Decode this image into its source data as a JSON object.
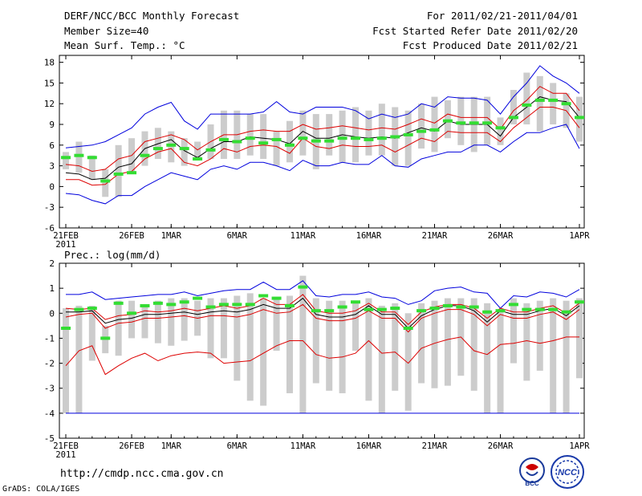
{
  "header": {
    "title": "DERF/NCC/BCC Monthly Forecast",
    "member_size": "Member Size=40",
    "variable": "Mean Surf. Temp.: °C",
    "period": "For 2011/02/21-2011/04/01",
    "started": "Fcst Started Refer Date 2011/02/20",
    "produced": "Fcst Produced Date 2011/02/21"
  },
  "footer": {
    "url": "http://cmdp.ncc.cma.gov.cn",
    "credit": "GrADS: COLA/IGES",
    "logo_left_text": "BCC",
    "logo_right_text": "NCC"
  },
  "colors": {
    "blue": "#0000dd",
    "red": "#dd0000",
    "black": "#000000",
    "green": "#33dd33",
    "gray": "#cccccc"
  },
  "chart_data": [
    {
      "type": "line",
      "name": "temperature",
      "title": "Mean Surf. Temp.: °C",
      "ylim": [
        -6,
        19
      ],
      "yticks": [
        -6,
        -3,
        0,
        3,
        6,
        9,
        12,
        15,
        18
      ],
      "ytick_labels": [
        "-6",
        "-3",
        "0",
        "3",
        "6",
        "9",
        "12",
        "15",
        "18"
      ],
      "xtick_labels": [
        {
          "day": 0,
          "label": "21FEB",
          "sub": "2011"
        },
        {
          "day": 5,
          "label": "26FEB",
          "sub": ""
        },
        {
          "day": 8,
          "label": "1MAR",
          "sub": ""
        },
        {
          "day": 13,
          "label": "6MAR",
          "sub": ""
        },
        {
          "day": 18,
          "label": "11MAR",
          "sub": ""
        },
        {
          "day": 23,
          "label": "16MAR",
          "sub": ""
        },
        {
          "day": 28,
          "label": "21MAR",
          "sub": ""
        },
        {
          "day": 33,
          "label": "26MAR",
          "sub": ""
        },
        {
          "day": 39,
          "label": "1APR",
          "sub": ""
        }
      ],
      "series": [
        {
          "name": "max",
          "color": "blue",
          "values": [
            5.6,
            5.8,
            6.0,
            6.5,
            7.5,
            8.5,
            10.5,
            11.5,
            12.2,
            9.5,
            8.3,
            10.5,
            10.5,
            10.5,
            10.5,
            10.8,
            12.3,
            10.8,
            10.5,
            11.5,
            11.5,
            11.5,
            11.0,
            9.8,
            10.5,
            10.0,
            10.5,
            12.0,
            11.5,
            13.0,
            12.8,
            12.8,
            12.5,
            10.5,
            13.0,
            15.0,
            17.5,
            16.0,
            15.0,
            13.5
          ]
        },
        {
          "name": "upper",
          "color": "red",
          "values": [
            3.2,
            3.0,
            2.2,
            2.5,
            4.0,
            4.5,
            6.5,
            7.0,
            7.5,
            6.8,
            5.3,
            6.5,
            7.5,
            7.5,
            8.0,
            8.2,
            8.0,
            8.0,
            9.0,
            8.3,
            8.5,
            8.8,
            8.5,
            8.2,
            8.5,
            8.3,
            9.0,
            9.8,
            9.2,
            10.5,
            10.0,
            10.0,
            10.0,
            8.3,
            11.0,
            12.5,
            14.5,
            13.5,
            13.5,
            11.0
          ]
        },
        {
          "name": "mean",
          "color": "black",
          "values": [
            2.0,
            1.8,
            1.0,
            1.2,
            2.8,
            3.3,
            5.5,
            6.2,
            6.8,
            5.2,
            4.2,
            5.5,
            6.5,
            6.5,
            7.2,
            7.0,
            6.8,
            6.2,
            8.0,
            7.0,
            7.0,
            7.5,
            7.2,
            7.0,
            7.2,
            7.0,
            7.8,
            8.5,
            8.0,
            9.5,
            9.0,
            9.0,
            9.0,
            7.3,
            10.0,
            11.5,
            13.0,
            12.5,
            12.3,
            10.0
          ]
        },
        {
          "name": "lower",
          "color": "red",
          "values": [
            1.0,
            1.0,
            0.2,
            0.3,
            1.8,
            2.2,
            4.0,
            5.0,
            5.5,
            3.5,
            3.0,
            4.0,
            5.5,
            5.0,
            5.8,
            6.0,
            5.8,
            4.8,
            7.0,
            5.8,
            5.5,
            6.0,
            5.8,
            5.8,
            6.0,
            5.0,
            6.0,
            7.0,
            6.5,
            8.0,
            7.8,
            7.8,
            7.8,
            6.5,
            8.5,
            10.0,
            11.5,
            11.5,
            11.0,
            8.5
          ]
        },
        {
          "name": "min",
          "color": "blue",
          "values": [
            -1.0,
            -1.2,
            -2.0,
            -2.5,
            -1.3,
            -1.3,
            0.0,
            1.0,
            2.0,
            1.5,
            1.0,
            2.5,
            3.0,
            2.5,
            3.5,
            3.5,
            3.0,
            2.3,
            3.8,
            3.0,
            3.0,
            3.5,
            3.2,
            3.2,
            4.5,
            3.0,
            2.8,
            4.0,
            4.5,
            5.0,
            5.0,
            6.0,
            6.0,
            5.0,
            6.5,
            7.8,
            7.8,
            8.5,
            9.0,
            5.5
          ]
        }
      ],
      "bars": {
        "name": "spread",
        "color": "gray",
        "low": [
          2.5,
          2.0,
          1.0,
          -1.5,
          -1.5,
          2.0,
          3.0,
          4.0,
          3.5,
          3.0,
          4.0,
          4.0,
          4.0,
          4.0,
          4.5,
          4.0,
          3.0,
          3.5,
          4.5,
          2.5,
          4.5,
          3.5,
          3.5,
          4.5,
          4.5,
          3.0,
          3.0,
          5.5,
          5.0,
          7.0,
          6.0,
          5.0,
          6.0,
          6.0,
          9.0,
          9.0,
          8.0,
          9.0,
          8.5,
          6.5
        ],
        "high": [
          5.0,
          6.5,
          4.5,
          2.5,
          6.0,
          7.0,
          8.0,
          8.5,
          8.0,
          7.0,
          6.5,
          9.0,
          11.0,
          11.0,
          10.5,
          10.5,
          8.0,
          9.5,
          11.0,
          10.5,
          10.5,
          11.0,
          11.5,
          11.0,
          12.0,
          11.5,
          11.0,
          12.0,
          13.0,
          12.5,
          13.0,
          13.0,
          13.0,
          10.0,
          14.0,
          16.5,
          16.0,
          15.0,
          13.5,
          13.0
        ]
      },
      "markers": {
        "name": "observed",
        "color": "green",
        "values": [
          4.2,
          4.5,
          4.2,
          0.8,
          1.8,
          2.0,
          4.5,
          5.5,
          6.0,
          5.5,
          4.0,
          5.3,
          6.8,
          6.5,
          7.0,
          6.3,
          6.8,
          6.0,
          7.0,
          6.6,
          6.6,
          7.0,
          7.0,
          6.8,
          7.0,
          7.2,
          7.5,
          8.0,
          8.2,
          9.5,
          9.2,
          9.2,
          9.2,
          8.5,
          10.0,
          11.8,
          12.5,
          12.5,
          12.0,
          10.0
        ]
      }
    },
    {
      "type": "line",
      "name": "precipitation",
      "title": "Prec.: log(mm/d)",
      "ylim": [
        -5,
        2
      ],
      "yticks": [
        -5,
        -4,
        -3,
        -2,
        -1,
        0,
        1,
        2
      ],
      "ytick_labels": [
        "-5",
        "-4",
        "-3",
        "-2",
        "-1",
        "0",
        "1",
        "2"
      ],
      "xtick_labels": [
        {
          "day": 0,
          "label": "21FEB",
          "sub": "2011"
        },
        {
          "day": 5,
          "label": "26FEB",
          "sub": ""
        },
        {
          "day": 8,
          "label": "1MAR",
          "sub": ""
        },
        {
          "day": 13,
          "label": "6MAR",
          "sub": ""
        },
        {
          "day": 18,
          "label": "11MAR",
          "sub": ""
        },
        {
          "day": 23,
          "label": "16MAR",
          "sub": ""
        },
        {
          "day": 28,
          "label": "21MAR",
          "sub": ""
        },
        {
          "day": 33,
          "label": "26MAR",
          "sub": ""
        },
        {
          "day": 39,
          "label": "1APR",
          "sub": ""
        }
      ],
      "series": [
        {
          "name": "max",
          "color": "blue",
          "values": [
            0.75,
            0.75,
            0.85,
            0.55,
            0.6,
            0.65,
            0.7,
            0.75,
            0.75,
            0.85,
            0.7,
            0.8,
            0.9,
            0.95,
            0.95,
            1.25,
            0.95,
            0.95,
            1.3,
            0.7,
            0.65,
            0.75,
            0.75,
            0.85,
            0.65,
            0.6,
            0.35,
            0.5,
            0.9,
            1.0,
            1.05,
            0.85,
            0.8,
            0.2,
            0.7,
            0.65,
            0.85,
            0.8,
            0.65,
            0.95
          ]
        },
        {
          "name": "upper",
          "color": "red",
          "values": [
            0.2,
            0.15,
            0.2,
            -0.25,
            -0.1,
            -0.05,
            0.1,
            0.05,
            0.1,
            0.2,
            0.1,
            0.2,
            0.3,
            0.2,
            0.3,
            0.6,
            0.35,
            0.35,
            0.75,
            0.1,
            0.0,
            0.0,
            0.1,
            0.4,
            0.05,
            0.05,
            -0.45,
            0.05,
            0.25,
            0.35,
            0.35,
            0.2,
            -0.2,
            0.2,
            0.05,
            0.05,
            0.2,
            0.3,
            0.0,
            0.4
          ]
        },
        {
          "name": "mean",
          "color": "black",
          "values": [
            0.05,
            0.05,
            0.1,
            -0.4,
            -0.25,
            -0.2,
            -0.05,
            -0.05,
            0.0,
            0.05,
            -0.05,
            0.05,
            0.1,
            0.05,
            0.15,
            0.35,
            0.2,
            0.2,
            0.6,
            -0.05,
            -0.15,
            -0.15,
            -0.05,
            0.3,
            -0.05,
            -0.05,
            -0.6,
            -0.1,
            0.15,
            0.3,
            0.3,
            0.1,
            -0.35,
            0.1,
            -0.05,
            -0.05,
            0.1,
            0.2,
            -0.1,
            0.3
          ]
        },
        {
          "name": "lower",
          "color": "red",
          "values": [
            -0.15,
            -0.05,
            0.0,
            -0.6,
            -0.4,
            -0.35,
            -0.2,
            -0.2,
            -0.15,
            -0.1,
            -0.2,
            -0.1,
            -0.1,
            -0.15,
            -0.05,
            0.15,
            0.0,
            0.05,
            0.35,
            -0.2,
            -0.3,
            -0.3,
            -0.2,
            0.1,
            -0.2,
            -0.2,
            -0.75,
            -0.2,
            0.0,
            0.15,
            0.15,
            -0.05,
            -0.5,
            -0.05,
            -0.2,
            -0.2,
            -0.05,
            0.05,
            -0.25,
            0.15
          ]
        },
        {
          "name": "min",
          "color": "red",
          "values": [
            -2.1,
            -1.5,
            -1.3,
            -2.45,
            -2.1,
            -1.8,
            -1.6,
            -1.9,
            -1.7,
            -1.6,
            -1.55,
            -1.6,
            -2.0,
            -1.95,
            -1.9,
            -1.6,
            -1.3,
            -1.1,
            -1.1,
            -1.65,
            -1.8,
            -1.75,
            -1.6,
            -1.1,
            -1.6,
            -1.55,
            -2.0,
            -1.4,
            -1.2,
            -1.05,
            -0.95,
            -1.5,
            -1.65,
            -1.25,
            -1.2,
            -1.1,
            -1.2,
            -1.1,
            -0.95,
            -0.95
          ]
        }
      ],
      "baseline": {
        "name": "floor",
        "color": "blue",
        "value": -4
      },
      "bars": {
        "name": "spread",
        "color": "gray",
        "low": [
          -4,
          -4,
          -1.9,
          -1.6,
          -1.7,
          -1.0,
          -1.0,
          -1.2,
          -1.3,
          -1.1,
          -0.9,
          -1.8,
          -1.8,
          -2.7,
          -3.5,
          -3.7,
          -1.5,
          -3.2,
          -4,
          -2.8,
          -3.1,
          -3.2,
          -1.5,
          -3.5,
          -4,
          -3.1,
          -3.9,
          -2.8,
          -3.0,
          -2.9,
          -2.5,
          -3.1,
          -4,
          -4,
          -2.0,
          -2.7,
          -2.3,
          -4,
          -4,
          -2.6
        ],
        "high": [
          0.2,
          0.3,
          0.3,
          -0.5,
          0.5,
          0.5,
          0.3,
          0.5,
          0.6,
          0.6,
          0.5,
          0.6,
          0.6,
          0.7,
          0.8,
          0.6,
          0.6,
          0.7,
          1.5,
          0.6,
          0.5,
          0.5,
          0.5,
          0.6,
          0.3,
          0.4,
          0.0,
          0.4,
          0.5,
          0.6,
          0.6,
          0.6,
          0.4,
          0.1,
          0.6,
          0.4,
          0.5,
          0.6,
          0.5,
          0.6
        ]
      },
      "markers": {
        "name": "observed",
        "color": "green",
        "values": [
          -0.6,
          0.15,
          0.2,
          -1.0,
          0.4,
          0.0,
          0.3,
          0.4,
          0.35,
          0.45,
          0.6,
          0.25,
          0.35,
          0.35,
          0.35,
          0.7,
          0.6,
          0.3,
          1.05,
          0.1,
          0.1,
          0.25,
          0.45,
          0.15,
          0.15,
          0.2,
          -0.6,
          0.1,
          0.2,
          0.3,
          0.25,
          0.25,
          0.05,
          0.1,
          0.35,
          0.15,
          0.15,
          0.15,
          0.05,
          0.45
        ]
      }
    }
  ]
}
